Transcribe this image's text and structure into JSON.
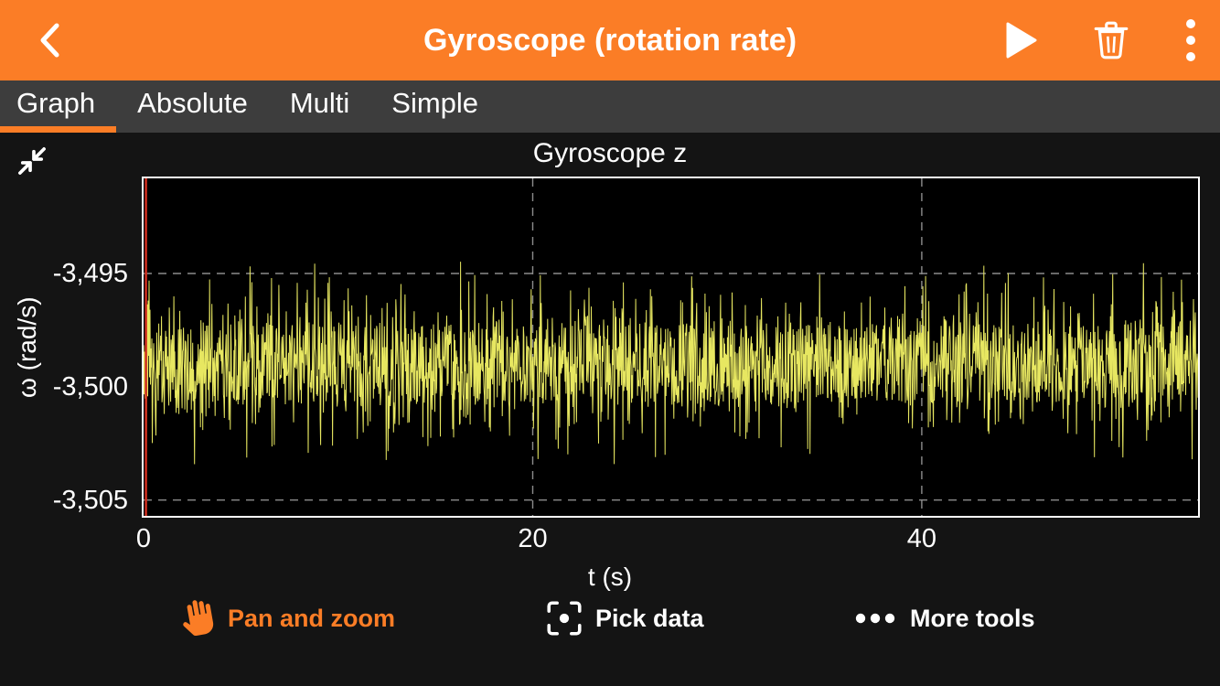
{
  "header": {
    "title": "Gyroscope (rotation rate)",
    "back_icon": "chevron-left-icon",
    "action_icons": [
      "play-icon",
      "trash-icon",
      "kebab-menu-icon"
    ]
  },
  "tabs": {
    "items": [
      {
        "label": "Graph",
        "active": true
      },
      {
        "label": "Absolute",
        "active": false
      },
      {
        "label": "Multi",
        "active": false
      },
      {
        "label": "Simple",
        "active": false
      }
    ]
  },
  "graph_view": {
    "expand_icon": "collapse-arrows-icon"
  },
  "chart_data": {
    "type": "line",
    "title": "Gyroscope z",
    "xlabel": "t (s)",
    "ylabel": "ω (rad/s)",
    "legend": "none",
    "grid": "dashed",
    "xlim": [
      0,
      54.2
    ],
    "ylim": [
      -3.5057,
      -3.4908
    ],
    "x_ticks": [
      0,
      20,
      40
    ],
    "x_tick_labels": [
      "0",
      "20",
      "40"
    ],
    "y_ticks": [
      -3.495,
      -3.5,
      -3.505
    ],
    "y_tick_labels": [
      "-3,495",
      "-3,500",
      "-3,505"
    ],
    "grid_x": [
      20,
      40
    ],
    "grid_y": [
      -3.495,
      -3.505
    ],
    "line_color": "#e7e761",
    "marker": {
      "x": 0.12,
      "color": "#cf2e1e"
    },
    "series": [
      {
        "name": "Gyroscope z",
        "description": "dense sensor noise: uniform band around mean with frequent narrow spikes",
        "synthesis": {
          "seed": 20240613,
          "points": 2300,
          "mean": -3.499,
          "band_half": 0.0017,
          "spike_prob": 0.2,
          "spike_extra": 0.003,
          "min": -3.5035,
          "max": -3.4936
        }
      }
    ]
  },
  "toolbar": {
    "items": [
      {
        "label": "Pan and zoom",
        "icon": "hand-icon",
        "active": true
      },
      {
        "label": "Pick data",
        "icon": "pick-data-icon",
        "active": false
      },
      {
        "label": "More tools",
        "icon": "ellipsis-icon",
        "active": false
      }
    ]
  },
  "colors": {
    "accent": "#fb7d26",
    "header_bg": "#fb7d26",
    "tab_bar_bg": "#3d3d3d",
    "background": "#141414",
    "plot_bg": "#000000",
    "signal": "#e7e761",
    "grid": "#8c8c8c",
    "marker": "#cf2e1e"
  }
}
